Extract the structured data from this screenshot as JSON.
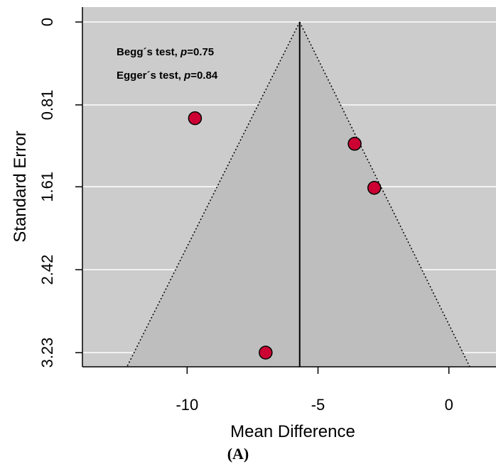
{
  "chart_data": {
    "type": "scatter",
    "subtype": "funnel-plot",
    "xlabel": "Mean Difference",
    "ylabel": "Standard Error",
    "xlim": [
      -14,
      1.8
    ],
    "ylim": [
      0,
      3.38
    ],
    "y_reversed": true,
    "x_ticks": [
      -10,
      -5,
      0
    ],
    "x_tick_labels": [
      "-10",
      "-5",
      "0"
    ],
    "y_ticks": [
      0,
      0.81,
      1.61,
      2.42,
      3.23
    ],
    "y_tick_labels": [
      "0",
      "0.81",
      "1.61",
      "2.42",
      "3.23"
    ],
    "grid": true,
    "background_color": "#cccccc",
    "funnel_color": "#bebebe",
    "gridline_color": "#ffffff",
    "point_color": "#cc0033",
    "pooled_estimate": -5.7,
    "funnel_bottom_x": [
      -12.3,
      0.8
    ],
    "points": [
      {
        "x": -9.7,
        "y": 0.94
      },
      {
        "x": -3.6,
        "y": 1.19
      },
      {
        "x": -2.85,
        "y": 1.62
      },
      {
        "x": -7.0,
        "y": 3.23
      }
    ],
    "annotations": [
      {
        "prefix": "Begg´s test, ",
        "italic": "p",
        "suffix": "=0.75"
      },
      {
        "prefix": "Egger´s test, ",
        "italic": "p",
        "suffix": "=0.84"
      }
    ],
    "panel_label": "(A)"
  }
}
